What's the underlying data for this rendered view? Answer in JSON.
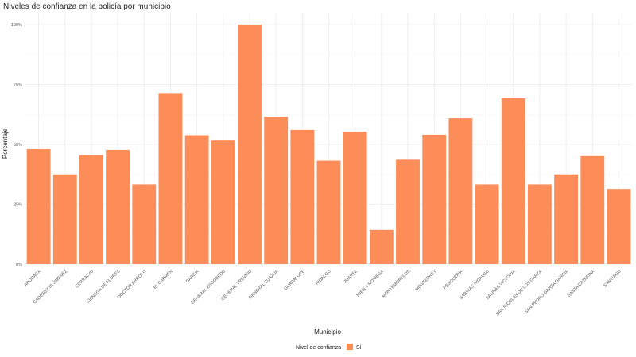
{
  "chart_data": {
    "type": "bar",
    "title": "Niveles de confianza en la policía por municipio",
    "xlabel": "Municipio",
    "ylabel": "Porcentaje",
    "ylim": [
      0,
      1
    ],
    "yticks": [
      0,
      0.25,
      0.5,
      0.75,
      1
    ],
    "ytick_labels": [
      "0%",
      "25%",
      "50%",
      "75%",
      "100%"
    ],
    "categories": [
      "APODACA",
      "CADEREYTA JIMENEZ",
      "CERRALVO",
      "CIENEGA DE FLORES",
      "DOCTOR ARROYO",
      "EL CARMEN",
      "GARCIA",
      "GENERAL ESCOBEDO",
      "GENERAL TREVIÑO",
      "GENERAL ZUAZUA",
      "GUADALUPE",
      "HIDALGO",
      "JUAREZ",
      "MIER Y NORIEGA",
      "MONTEMORELOS",
      "MONTERREY",
      "PESQUERIA",
      "SABINAS HIDALGO",
      "SALINAS VICTORIA",
      "SAN NICOLAS DE LOS GARZA",
      "SAN PEDRO GARZA GARCIA",
      "SANTA CATARINA",
      "SANTIAGO"
    ],
    "series": [
      {
        "name": "Sí",
        "color": "#FC8D59",
        "values": [
          0.48,
          0.375,
          0.455,
          0.477,
          0.333,
          0.714,
          0.538,
          0.516,
          1.0,
          0.615,
          0.56,
          0.432,
          0.552,
          0.143,
          0.436,
          0.54,
          0.609,
          0.333,
          0.692,
          0.333,
          0.375,
          0.451,
          0.314
        ]
      }
    ],
    "legend": {
      "title": "Nivel de confianza",
      "position": "bottom"
    },
    "grid": true
  }
}
